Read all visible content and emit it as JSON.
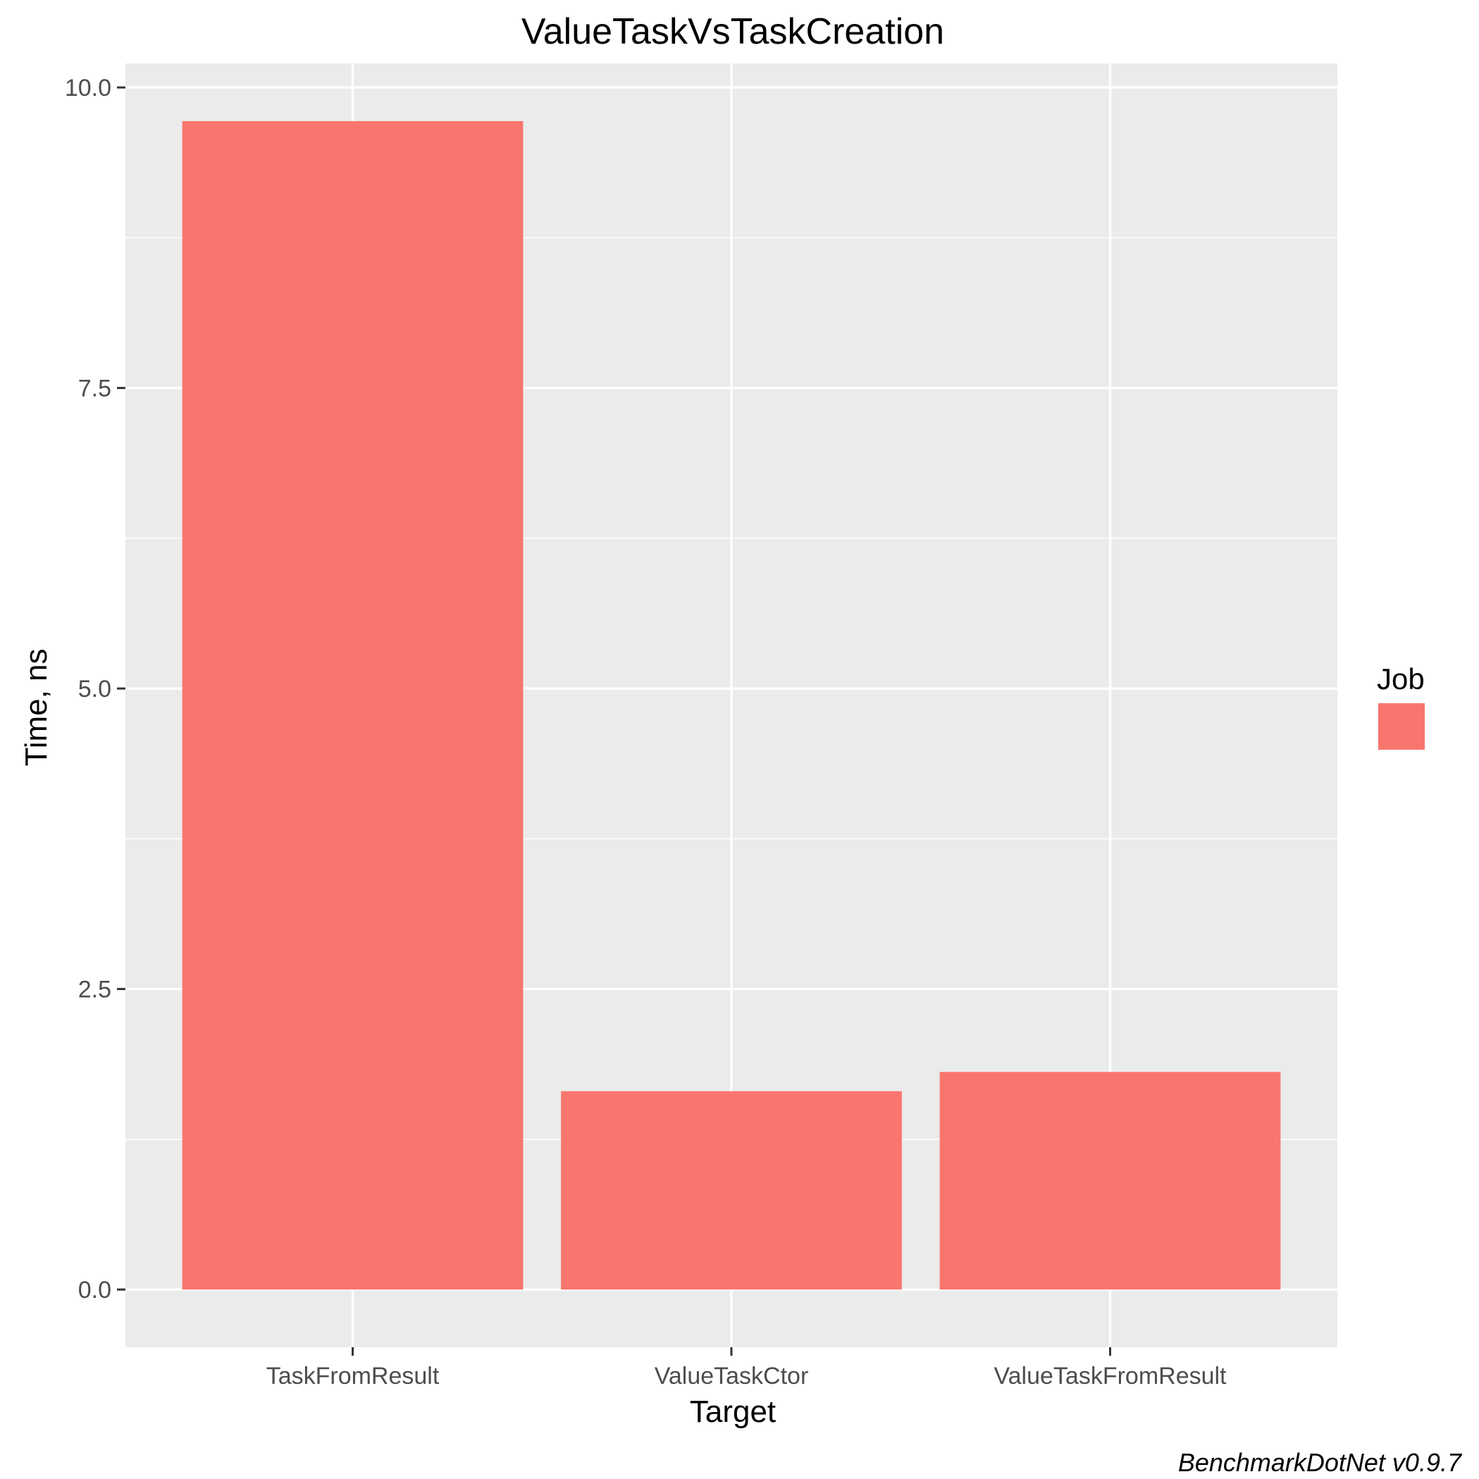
{
  "chart_data": {
    "type": "bar",
    "title": "ValueTaskVsTaskCreation",
    "xlabel": "Target",
    "ylabel": "Time, ns",
    "categories": [
      "TaskFromResult",
      "ValueTaskCtor",
      "ValueTaskFromResult"
    ],
    "series": [
      {
        "values": [
          9.72,
          1.65,
          1.81
        ],
        "color": "#F8766D"
      }
    ],
    "ylim": [
      -0.48,
      10.2
    ],
    "yticks": [
      0.0,
      2.5,
      5.0,
      7.5,
      10.0
    ],
    "ytick_labels": [
      "0.0",
      "2.5",
      "5.0",
      "7.5",
      "10.0"
    ],
    "grid": true,
    "legend": {
      "title": "Job",
      "position": "right",
      "entries": [
        {
          "label": "",
          "color": "#F8766D"
        }
      ]
    },
    "panel_color": "#EBEBEB",
    "caption": "BenchmarkDotNet v0.9.7"
  }
}
